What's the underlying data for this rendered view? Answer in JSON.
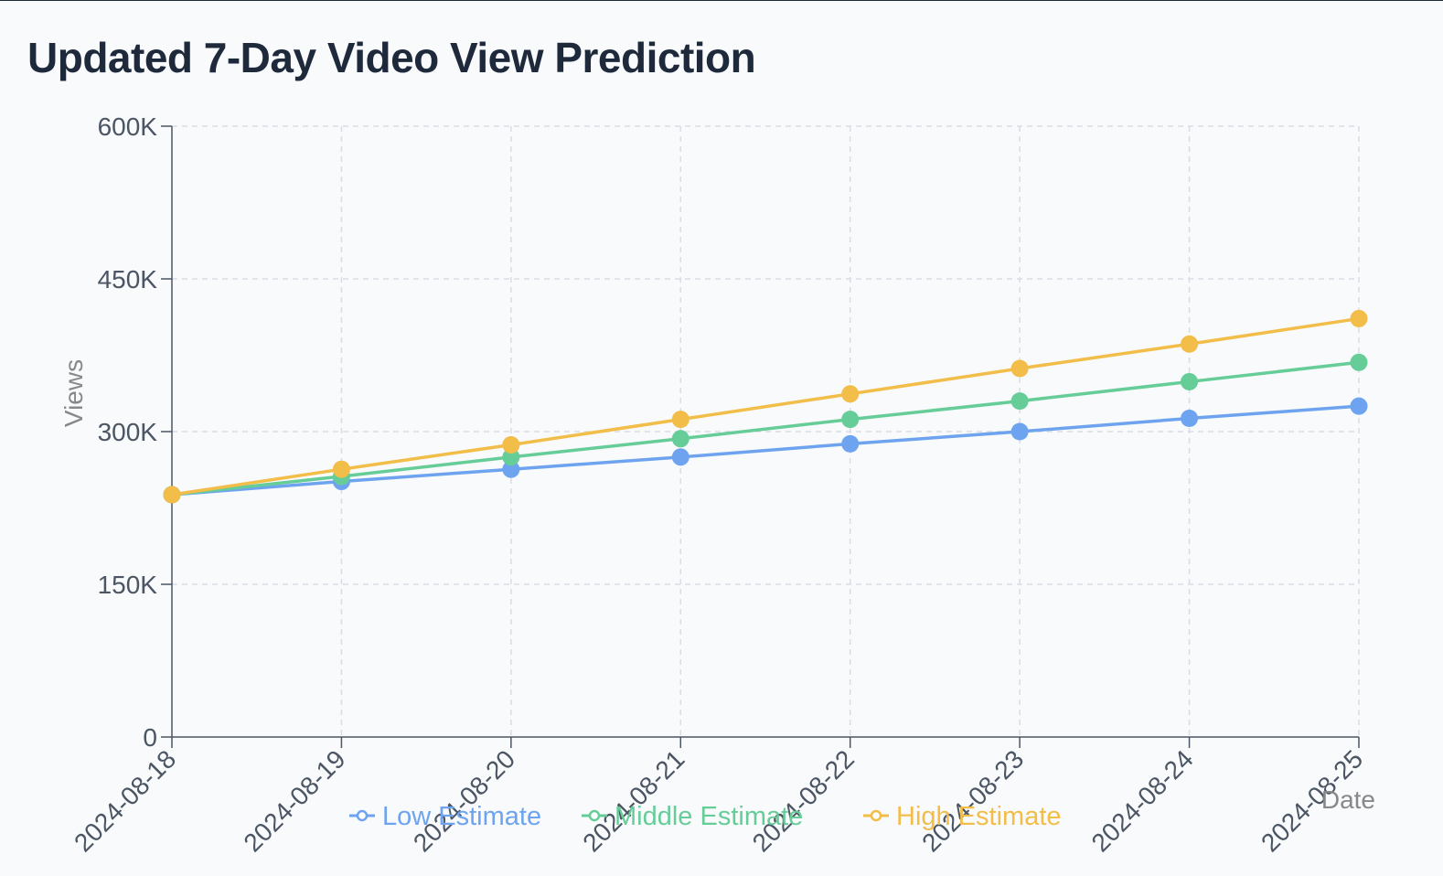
{
  "title": "Updated 7-Day Video View Prediction",
  "chart_data": {
    "type": "line",
    "title": "Updated 7-Day Video View Prediction",
    "xlabel": "Date",
    "ylabel": "Views",
    "categories": [
      "2024-08-18",
      "2024-08-19",
      "2024-08-20",
      "2024-08-21",
      "2024-08-22",
      "2024-08-23",
      "2024-08-24",
      "2024-08-25"
    ],
    "y_ticks": [
      0,
      150000,
      300000,
      450000,
      600000
    ],
    "y_tick_labels": [
      "0",
      "150K",
      "300K",
      "450K",
      "600K"
    ],
    "ylim": [
      0,
      600000
    ],
    "grid": true,
    "legend_position": "bottom",
    "series": [
      {
        "name": "Low Estimate",
        "color": "#6ea4ef",
        "values": [
          238000,
          251000,
          263000,
          275000,
          288000,
          300000,
          313000,
          325000
        ]
      },
      {
        "name": "Middle Estimate",
        "color": "#67cd98",
        "values": [
          238000,
          256000,
          275000,
          293000,
          312000,
          330000,
          349000,
          368000
        ]
      },
      {
        "name": "High Estimate",
        "color": "#f2bd48",
        "values": [
          238000,
          263000,
          287000,
          312000,
          337000,
          362000,
          386000,
          411000
        ]
      }
    ]
  }
}
